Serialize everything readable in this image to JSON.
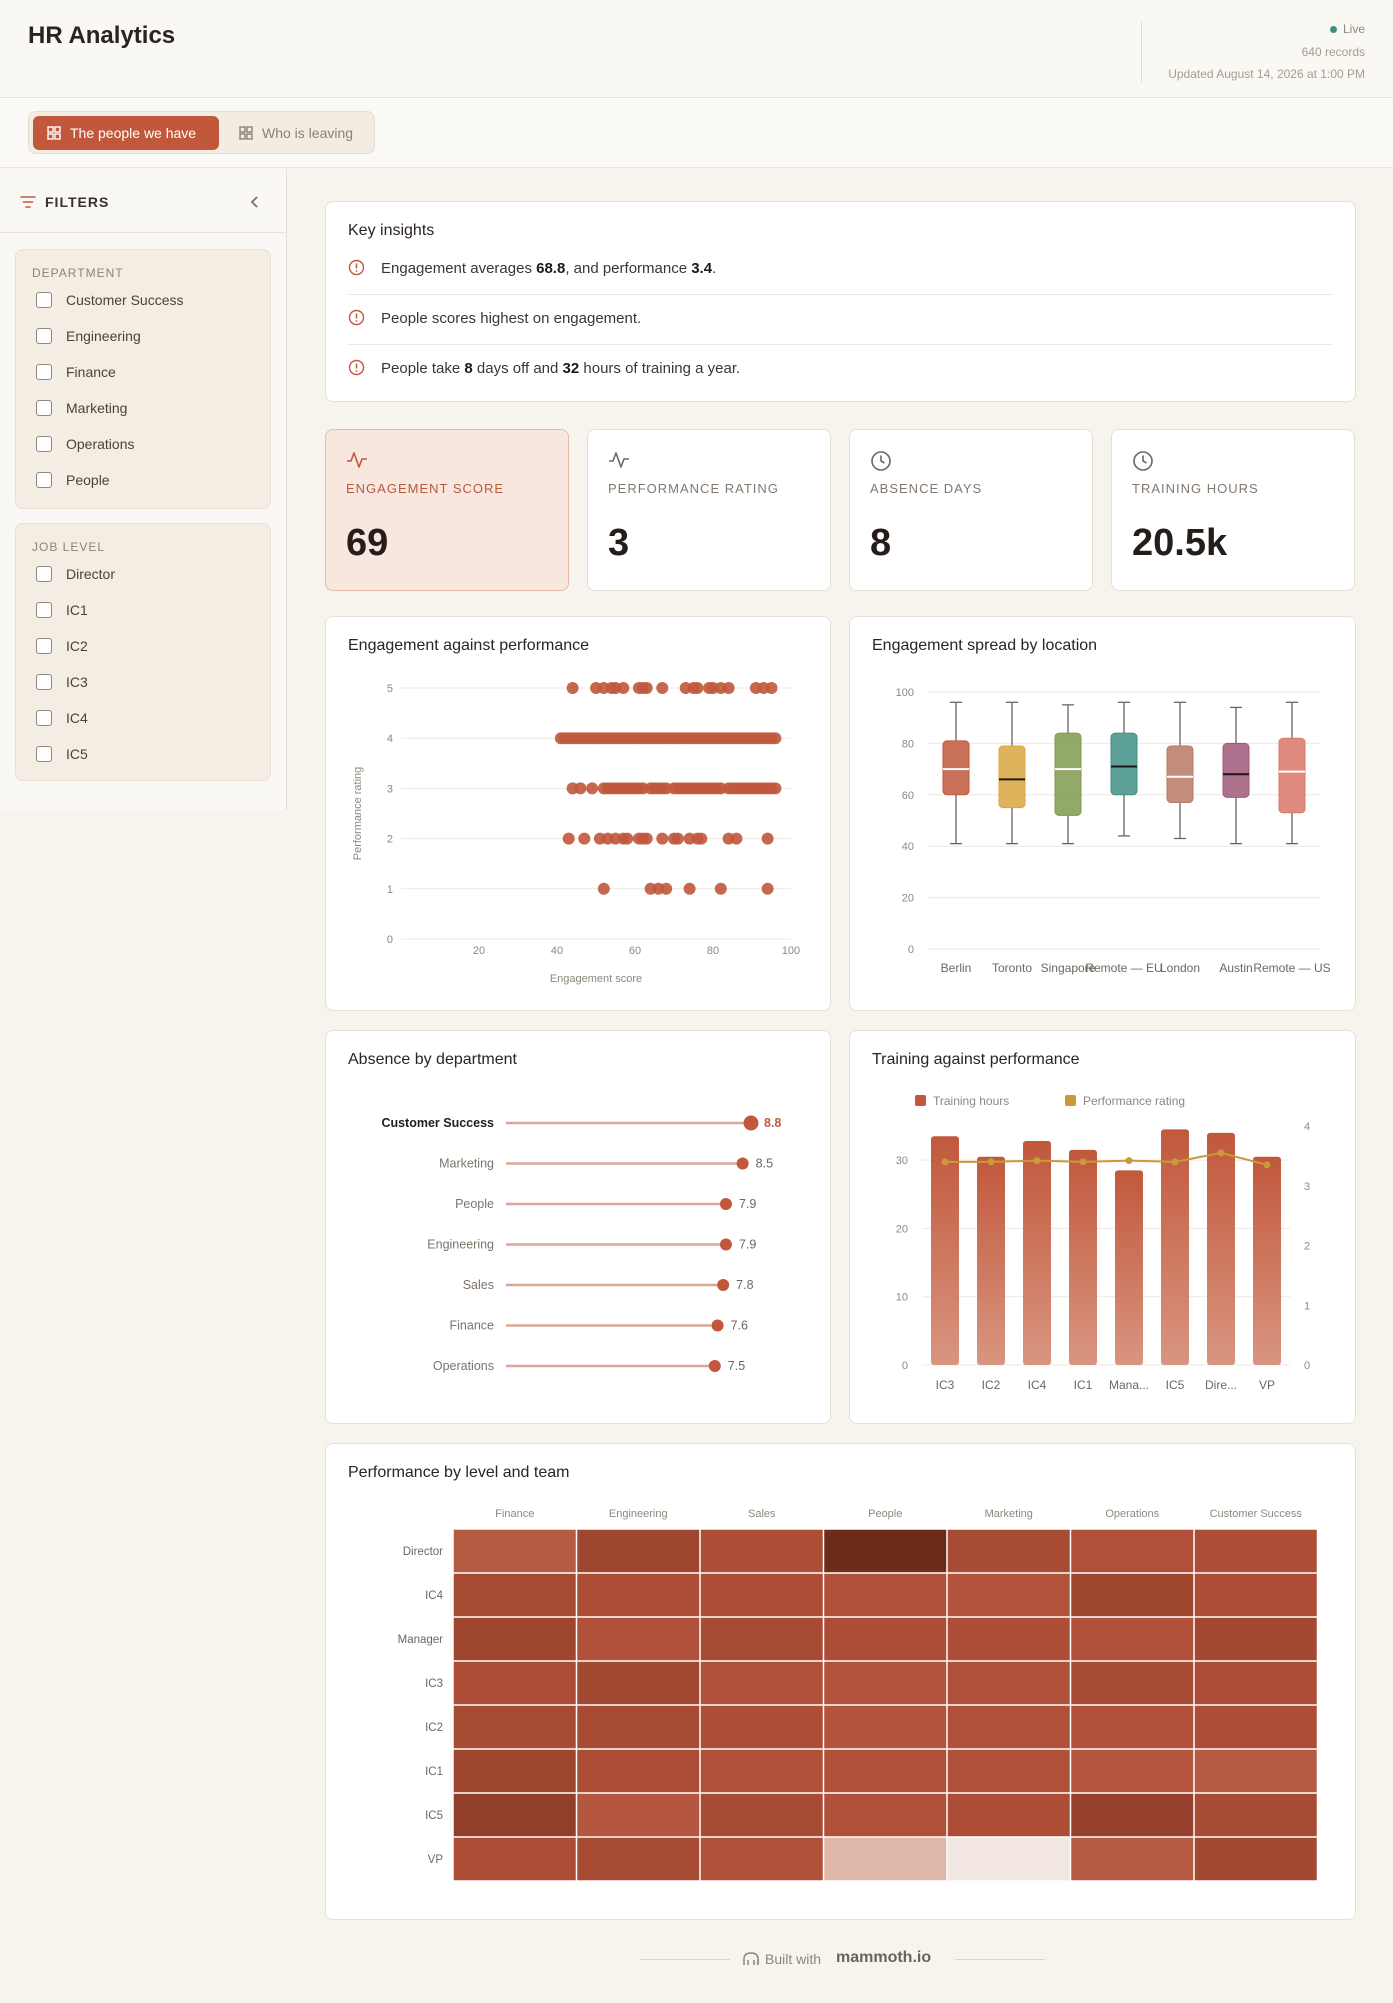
{
  "app": {
    "title": "HR Analytics"
  },
  "status": {
    "live": "Live",
    "records": "640 records",
    "updated": "Updated August 14, 2026 at 1:00 PM"
  },
  "tabs": [
    {
      "label": "The people we have",
      "active": true
    },
    {
      "label": "Who is leaving",
      "active": false
    }
  ],
  "filters": {
    "title": "FILTERS",
    "groups": [
      {
        "title": "DEPARTMENT",
        "options": [
          "Customer Success",
          "Engineering",
          "Finance",
          "Marketing",
          "Operations",
          "People"
        ]
      },
      {
        "title": "JOB LEVEL",
        "options": [
          "Director",
          "IC1",
          "IC2",
          "IC3",
          "IC4",
          "IC5"
        ]
      }
    ]
  },
  "insights": {
    "title": "Key insights",
    "items": [
      {
        "parts": [
          "Engagement averages ",
          "68.8",
          ", and performance ",
          "3.4",
          "."
        ]
      },
      {
        "parts": [
          "People scores highest on engagement."
        ]
      },
      {
        "parts": [
          "People take ",
          "8",
          " days off and ",
          "32",
          " hours of training a year."
        ]
      }
    ]
  },
  "kpis": [
    {
      "label": "ENGAGEMENT SCORE",
      "value": "69",
      "icon": "activity-icon"
    },
    {
      "label": "PERFORMANCE RATING",
      "value": "3",
      "icon": "activity-icon"
    },
    {
      "label": "ABSENCE DAYS",
      "value": "8",
      "icon": "clock-icon"
    },
    {
      "label": "TRAINING HOURS",
      "value": "20.5k",
      "icon": "clock-icon"
    }
  ],
  "colors": {
    "accent": "#c1583c",
    "scatter": "#c0583c",
    "line": "#c99a3a",
    "live": "#3f8f86"
  },
  "footer": {
    "built": "Built with",
    "brand": "mammoth.io"
  },
  "chart_data": [
    {
      "type": "scatter",
      "title": "Engagement against performance",
      "xlabel": "Engagement score",
      "ylabel": "Performance rating",
      "xlim": [
        0,
        100
      ],
      "ylim": [
        0,
        5
      ],
      "xticks": [
        20,
        40,
        60,
        80,
        100
      ],
      "yticks": [
        0,
        1,
        2,
        3,
        4,
        5
      ],
      "points": [
        [
          44,
          5
        ],
        [
          50,
          5
        ],
        [
          52,
          5
        ],
        [
          54,
          5
        ],
        [
          55,
          5
        ],
        [
          57,
          5
        ],
        [
          61,
          5
        ],
        [
          62,
          5
        ],
        [
          63,
          5
        ],
        [
          67,
          5
        ],
        [
          73,
          5
        ],
        [
          75,
          5
        ],
        [
          76,
          5
        ],
        [
          79,
          5
        ],
        [
          80,
          5
        ],
        [
          82,
          5
        ],
        [
          84,
          5
        ],
        [
          91,
          5
        ],
        [
          93,
          5
        ],
        [
          95,
          5
        ],
        [
          41,
          4
        ],
        [
          42,
          4
        ],
        [
          43,
          4
        ],
        [
          44,
          4
        ],
        [
          45,
          4
        ],
        [
          46,
          4
        ],
        [
          47,
          4
        ],
        [
          48,
          4
        ],
        [
          49,
          4
        ],
        [
          50,
          4
        ],
        [
          51,
          4
        ],
        [
          52,
          4
        ],
        [
          53,
          4
        ],
        [
          54,
          4
        ],
        [
          55,
          4
        ],
        [
          56,
          4
        ],
        [
          57,
          4
        ],
        [
          58,
          4
        ],
        [
          59,
          4
        ],
        [
          60,
          4
        ],
        [
          61,
          4
        ],
        [
          62,
          4
        ],
        [
          63,
          4
        ],
        [
          64,
          4
        ],
        [
          65,
          4
        ],
        [
          66,
          4
        ],
        [
          67,
          4
        ],
        [
          68,
          4
        ],
        [
          69,
          4
        ],
        [
          70,
          4
        ],
        [
          71,
          4
        ],
        [
          72,
          4
        ],
        [
          73,
          4
        ],
        [
          74,
          4
        ],
        [
          75,
          4
        ],
        [
          76,
          4
        ],
        [
          77,
          4
        ],
        [
          78,
          4
        ],
        [
          79,
          4
        ],
        [
          80,
          4
        ],
        [
          81,
          4
        ],
        [
          82,
          4
        ],
        [
          83,
          4
        ],
        [
          84,
          4
        ],
        [
          85,
          4
        ],
        [
          86,
          4
        ],
        [
          87,
          4
        ],
        [
          88,
          4
        ],
        [
          89,
          4
        ],
        [
          90,
          4
        ],
        [
          91,
          4
        ],
        [
          92,
          4
        ],
        [
          93,
          4
        ],
        [
          94,
          4
        ],
        [
          95,
          4
        ],
        [
          96,
          4
        ],
        [
          44,
          3
        ],
        [
          46,
          3
        ],
        [
          49,
          3
        ],
        [
          52,
          3
        ],
        [
          53,
          3
        ],
        [
          54,
          3
        ],
        [
          55,
          3
        ],
        [
          56,
          3
        ],
        [
          57,
          3
        ],
        [
          58,
          3
        ],
        [
          59,
          3
        ],
        [
          60,
          3
        ],
        [
          61,
          3
        ],
        [
          62,
          3
        ],
        [
          64,
          3
        ],
        [
          65,
          3
        ],
        [
          66,
          3
        ],
        [
          67,
          3
        ],
        [
          68,
          3
        ],
        [
          70,
          3
        ],
        [
          71,
          3
        ],
        [
          72,
          3
        ],
        [
          73,
          3
        ],
        [
          74,
          3
        ],
        [
          75,
          3
        ],
        [
          76,
          3
        ],
        [
          77,
          3
        ],
        [
          78,
          3
        ],
        [
          79,
          3
        ],
        [
          80,
          3
        ],
        [
          81,
          3
        ],
        [
          82,
          3
        ],
        [
          84,
          3
        ],
        [
          85,
          3
        ],
        [
          86,
          3
        ],
        [
          87,
          3
        ],
        [
          88,
          3
        ],
        [
          89,
          3
        ],
        [
          90,
          3
        ],
        [
          91,
          3
        ],
        [
          92,
          3
        ],
        [
          93,
          3
        ],
        [
          94,
          3
        ],
        [
          95,
          3
        ],
        [
          96,
          3
        ],
        [
          43,
          2
        ],
        [
          47,
          2
        ],
        [
          51,
          2
        ],
        [
          53,
          2
        ],
        [
          55,
          2
        ],
        [
          57,
          2
        ],
        [
          58,
          2
        ],
        [
          61,
          2
        ],
        [
          62,
          2
        ],
        [
          63,
          2
        ],
        [
          67,
          2
        ],
        [
          70,
          2
        ],
        [
          71,
          2
        ],
        [
          74,
          2
        ],
        [
          76,
          2
        ],
        [
          77,
          2
        ],
        [
          84,
          2
        ],
        [
          86,
          2
        ],
        [
          94,
          2
        ],
        [
          52,
          1
        ],
        [
          64,
          1
        ],
        [
          66,
          1
        ],
        [
          68,
          1
        ],
        [
          74,
          1
        ],
        [
          82,
          1
        ],
        [
          94,
          1
        ]
      ]
    },
    {
      "type": "box",
      "title": "Engagement spread by location",
      "ylim": [
        0,
        100
      ],
      "yticks": [
        0,
        20,
        40,
        60,
        80,
        100
      ],
      "categories": [
        "Berlin",
        "Toronto",
        "Singapore",
        "Remote — EU",
        "London",
        "Austin",
        "Remote — US"
      ],
      "colors": [
        "#c1583c",
        "#d9a63f",
        "#7f9a4e",
        "#3f8f86",
        "#b87864",
        "#a0587a",
        "#d9776a"
      ],
      "boxes": [
        {
          "min": 41,
          "q1": 60,
          "median": 70,
          "q3": 81,
          "max": 96
        },
        {
          "min": 41,
          "q1": 55,
          "median": 66,
          "q3": 79,
          "max": 96
        },
        {
          "min": 41,
          "q1": 52,
          "median": 70,
          "q3": 84,
          "max": 95
        },
        {
          "min": 44,
          "q1": 60,
          "median": 71,
          "q3": 84,
          "max": 96
        },
        {
          "min": 43,
          "q1": 57,
          "median": 67,
          "q3": 79,
          "max": 96
        },
        {
          "min": 41,
          "q1": 59,
          "median": 68,
          "q3": 80,
          "max": 94
        },
        {
          "min": 41,
          "q1": 53,
          "median": 69,
          "q3": 82,
          "max": 96
        }
      ]
    },
    {
      "type": "lollipop",
      "title": "Absence by department",
      "categories": [
        "Customer Success",
        "Marketing",
        "People",
        "Engineering",
        "Sales",
        "Finance",
        "Operations"
      ],
      "values": [
        8.8,
        8.5,
        7.9,
        7.9,
        7.8,
        7.6,
        7.5
      ],
      "labels": [
        "8.8",
        "8.5",
        "7.9",
        "7.9",
        "7.8",
        "7.6",
        "7.5"
      ],
      "highlight": "Customer Success",
      "xlim": [
        0,
        8.8
      ]
    },
    {
      "type": "bar",
      "title": "Training against performance",
      "categories": [
        "IC3",
        "IC2",
        "IC4",
        "IC1",
        "Mana...",
        "IC5",
        "Dire...",
        "VP"
      ],
      "series": [
        {
          "name": "Training hours",
          "type": "bar",
          "axis": "left",
          "values": [
            33.5,
            30.5,
            32.8,
            31.5,
            28.5,
            34.5,
            34,
            30.5
          ]
        },
        {
          "name": "Performance rating",
          "type": "line",
          "axis": "right",
          "values": [
            3.4,
            3.4,
            3.42,
            3.4,
            3.42,
            3.4,
            3.55,
            3.35
          ]
        }
      ],
      "ylim": [
        0,
        35
      ],
      "yticks": [
        0,
        10,
        20,
        30
      ],
      "y2lim": [
        0,
        4
      ],
      "y2ticks": [
        0,
        1,
        2,
        3,
        4
      ],
      "legend": "top-left"
    },
    {
      "type": "heatmap",
      "title": "Performance by level and team",
      "columns": [
        "Finance",
        "Engineering",
        "Sales",
        "People",
        "Marketing",
        "Operations",
        "Customer Success"
      ],
      "rows": [
        "Director",
        "IC4",
        "Manager",
        "IC3",
        "IC2",
        "IC1",
        "IC5",
        "VP"
      ],
      "values": [
        [
          3.3,
          3.65,
          3.5,
          4.2,
          3.55,
          3.45,
          3.5
        ],
        [
          3.55,
          3.5,
          3.5,
          3.45,
          3.4,
          3.65,
          3.5
        ],
        [
          3.65,
          3.45,
          3.55,
          3.5,
          3.5,
          3.45,
          3.6
        ],
        [
          3.5,
          3.6,
          3.45,
          3.4,
          3.45,
          3.55,
          3.5
        ],
        [
          3.55,
          3.55,
          3.5,
          3.4,
          3.45,
          3.45,
          3.5
        ],
        [
          3.65,
          3.5,
          3.45,
          3.45,
          3.45,
          3.35,
          3.3
        ],
        [
          3.8,
          3.35,
          3.55,
          3.45,
          3.5,
          3.75,
          3.55
        ],
        [
          3.5,
          3.55,
          3.45,
          2.0,
          1.5,
          3.3,
          3.6
        ]
      ]
    }
  ]
}
